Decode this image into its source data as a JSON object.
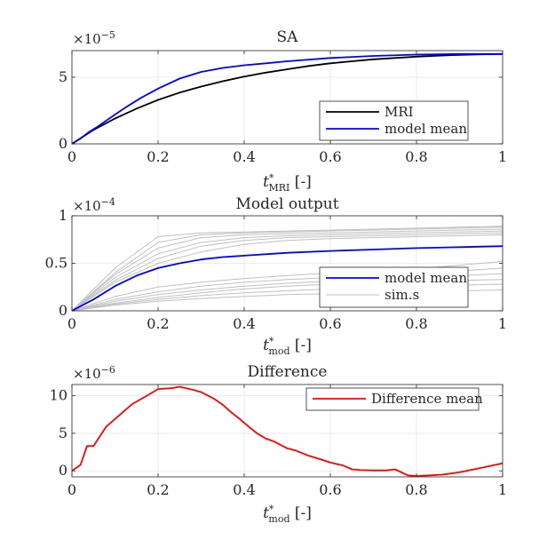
{
  "chart_data": [
    {
      "type": "line",
      "title": "SA",
      "xlabel": "t*MRI [-]",
      "xlabel_parts": {
        "t": "t",
        "star": "*",
        "sub": "MRI",
        "rest": " [-]"
      },
      "ylabel": "",
      "exponent_label": {
        "base": "×10",
        "exp": "−5"
      },
      "xlim": [
        0,
        1
      ],
      "ylim": [
        0,
        7
      ],
      "xticks": [
        0,
        0.2,
        0.4,
        0.6,
        0.8,
        1
      ],
      "xticklabels": [
        "0",
        "0.2",
        "0.4",
        "0.6",
        "0.8",
        "1"
      ],
      "yticks": [
        0,
        5
      ],
      "yticklabels": [
        "0",
        "5"
      ],
      "grid": true,
      "legend": {
        "position": "bottom-right",
        "entries": [
          "MRI",
          "model mean"
        ]
      },
      "series": [
        {
          "name": "MRI",
          "color": "#000000",
          "x": [
            0,
            0.05,
            0.1,
            0.15,
            0.2,
            0.25,
            0.3,
            0.35,
            0.4,
            0.45,
            0.5,
            0.55,
            0.6,
            0.65,
            0.7,
            0.75,
            0.8,
            0.85,
            0.9,
            0.95,
            1.0
          ],
          "y": [
            0,
            1.05,
            1.9,
            2.65,
            3.3,
            3.85,
            4.3,
            4.7,
            5.05,
            5.35,
            5.6,
            5.85,
            6.05,
            6.2,
            6.35,
            6.45,
            6.55,
            6.62,
            6.68,
            6.72,
            6.75
          ]
        },
        {
          "name": "model mean",
          "color": "#0000ff",
          "x": [
            0,
            0.02,
            0.04,
            0.06,
            0.08,
            0.1,
            0.13,
            0.16,
            0.2,
            0.25,
            0.3,
            0.35,
            0.4,
            0.45,
            0.5,
            0.6,
            0.7,
            0.8,
            0.9,
            1.0
          ],
          "y": [
            0,
            0.4,
            0.9,
            1.3,
            1.75,
            2.2,
            2.85,
            3.45,
            4.15,
            4.9,
            5.4,
            5.7,
            5.9,
            6.05,
            6.2,
            6.45,
            6.6,
            6.7,
            6.75,
            6.75
          ]
        }
      ]
    },
    {
      "type": "line",
      "title": "Model output",
      "xlabel": "t*mod [-]",
      "xlabel_parts": {
        "t": "t",
        "star": "*",
        "sub": "mod",
        "rest": " [-]"
      },
      "ylabel": "",
      "exponent_label": {
        "base": "×10",
        "exp": "−4"
      },
      "xlim": [
        0,
        1
      ],
      "ylim": [
        0,
        1
      ],
      "xticks": [
        0,
        0.2,
        0.4,
        0.6,
        0.8,
        1
      ],
      "xticklabels": [
        "0",
        "0.2",
        "0.4",
        "0.6",
        "0.8",
        "1"
      ],
      "yticks": [
        0,
        0.5,
        1
      ],
      "yticklabels": [
        "0",
        "0.5",
        "1"
      ],
      "grid": true,
      "legend": {
        "position": "bottom-right",
        "entries": [
          "model mean",
          "sim.s"
        ]
      },
      "series": [
        {
          "name": "model mean",
          "color": "#0000ff",
          "x": [
            0,
            0.05,
            0.1,
            0.15,
            0.2,
            0.25,
            0.3,
            0.35,
            0.4,
            0.5,
            0.6,
            0.7,
            0.8,
            0.9,
            1.0
          ],
          "y": [
            0,
            0.12,
            0.26,
            0.37,
            0.45,
            0.5,
            0.54,
            0.565,
            0.58,
            0.61,
            0.63,
            0.645,
            0.66,
            0.67,
            0.68
          ]
        },
        {
          "name": "sim.s",
          "color": "#c0c0c0",
          "x": [
            0,
            0.1,
            0.2,
            0.3,
            0.4,
            0.5,
            0.6,
            0.7,
            0.8,
            0.9,
            1.0
          ],
          "y": [
            0,
            0.45,
            0.78,
            0.82,
            0.83,
            0.84,
            0.85,
            0.86,
            0.87,
            0.88,
            0.89
          ]
        },
        {
          "name": "",
          "color": "#c0c0c0",
          "x": [
            0,
            0.1,
            0.2,
            0.3,
            0.4,
            0.5,
            0.6,
            0.7,
            0.8,
            0.9,
            1.0
          ],
          "y": [
            0,
            0.4,
            0.72,
            0.8,
            0.82,
            0.83,
            0.84,
            0.85,
            0.86,
            0.87,
            0.88
          ]
        },
        {
          "name": "",
          "color": "#c0c0c0",
          "x": [
            0,
            0.1,
            0.2,
            0.3,
            0.4,
            0.5,
            0.6,
            0.7,
            0.8,
            0.9,
            1.0
          ],
          "y": [
            0,
            0.38,
            0.66,
            0.77,
            0.8,
            0.81,
            0.82,
            0.83,
            0.84,
            0.85,
            0.86
          ]
        },
        {
          "name": "",
          "color": "#c0c0c0",
          "x": [
            0,
            0.1,
            0.2,
            0.3,
            0.4,
            0.5,
            0.6,
            0.7,
            0.8,
            0.9,
            1.0
          ],
          "y": [
            0,
            0.35,
            0.6,
            0.72,
            0.77,
            0.79,
            0.8,
            0.81,
            0.82,
            0.83,
            0.84
          ]
        },
        {
          "name": "",
          "color": "#c0c0c0",
          "x": [
            0,
            0.1,
            0.2,
            0.3,
            0.4,
            0.5,
            0.6,
            0.7,
            0.8,
            0.9,
            1.0
          ],
          "y": [
            0,
            0.32,
            0.55,
            0.68,
            0.74,
            0.77,
            0.78,
            0.79,
            0.8,
            0.81,
            0.82
          ]
        },
        {
          "name": "",
          "color": "#c0c0c0",
          "x": [
            0,
            0.1,
            0.2,
            0.3,
            0.4,
            0.5,
            0.6,
            0.7,
            0.8,
            0.9,
            1.0
          ],
          "y": [
            0,
            0.3,
            0.5,
            0.62,
            0.7,
            0.74,
            0.76,
            0.77,
            0.78,
            0.79,
            0.8
          ]
        },
        {
          "name": "",
          "color": "#c0c0c0",
          "x": [
            0,
            0.1,
            0.2,
            0.3,
            0.4,
            0.5,
            0.6,
            0.7,
            0.8,
            0.9,
            1.0
          ],
          "y": [
            0,
            0.15,
            0.25,
            0.3,
            0.34,
            0.37,
            0.4,
            0.42,
            0.44,
            0.48,
            0.52
          ]
        },
        {
          "name": "",
          "color": "#c0c0c0",
          "x": [
            0,
            0.1,
            0.2,
            0.3,
            0.4,
            0.5,
            0.6,
            0.7,
            0.8,
            0.9,
            1.0
          ],
          "y": [
            0,
            0.12,
            0.2,
            0.26,
            0.3,
            0.33,
            0.35,
            0.37,
            0.39,
            0.42,
            0.45
          ]
        },
        {
          "name": "",
          "color": "#c0c0c0",
          "x": [
            0,
            0.1,
            0.2,
            0.3,
            0.4,
            0.5,
            0.6,
            0.7,
            0.8,
            0.9,
            1.0
          ],
          "y": [
            0,
            0.1,
            0.17,
            0.22,
            0.26,
            0.29,
            0.31,
            0.33,
            0.35,
            0.37,
            0.39
          ]
        },
        {
          "name": "",
          "color": "#c0c0c0",
          "x": [
            0,
            0.1,
            0.2,
            0.3,
            0.4,
            0.5,
            0.6,
            0.7,
            0.8,
            0.9,
            1.0
          ],
          "y": [
            0,
            0.08,
            0.14,
            0.19,
            0.23,
            0.26,
            0.28,
            0.3,
            0.31,
            0.32,
            0.33
          ]
        },
        {
          "name": "",
          "color": "#c0c0c0",
          "x": [
            0,
            0.1,
            0.2,
            0.3,
            0.4,
            0.5,
            0.6,
            0.7,
            0.8,
            0.9,
            1.0
          ],
          "y": [
            0,
            0.07,
            0.12,
            0.16,
            0.19,
            0.21,
            0.23,
            0.25,
            0.26,
            0.27,
            0.28
          ]
        },
        {
          "name": "",
          "color": "#c0c0c0",
          "x": [
            0,
            0.1,
            0.2,
            0.3,
            0.4,
            0.5,
            0.6,
            0.7,
            0.8,
            0.9,
            1.0
          ],
          "y": [
            0,
            0.06,
            0.1,
            0.13,
            0.15,
            0.17,
            0.18,
            0.19,
            0.2,
            0.21,
            0.22
          ]
        }
      ]
    },
    {
      "type": "line",
      "title": "Difference",
      "xlabel": "t*mod [-]",
      "xlabel_parts": {
        "t": "t",
        "star": "*",
        "sub": "mod",
        "rest": " [-]"
      },
      "ylabel": "",
      "exponent_label": {
        "base": "×10",
        "exp": "−6"
      },
      "xlim": [
        0,
        1
      ],
      "ylim": [
        -0.8,
        11.5
      ],
      "xticks": [
        0,
        0.2,
        0.4,
        0.6,
        0.8,
        1
      ],
      "xticklabels": [
        "0",
        "0.2",
        "0.4",
        "0.6",
        "0.8",
        "1"
      ],
      "yticks": [
        0,
        5,
        10
      ],
      "yticklabels": [
        "0",
        "5",
        "10"
      ],
      "grid": true,
      "legend": {
        "position": "top-right",
        "entries": [
          "Difference mean"
        ]
      },
      "series": [
        {
          "name": "Difference mean",
          "color": "#ff0000",
          "x": [
            0,
            0.02,
            0.035,
            0.05,
            0.08,
            0.12,
            0.14,
            0.18,
            0.2,
            0.23,
            0.25,
            0.28,
            0.3,
            0.33,
            0.35,
            0.37,
            0.39,
            0.41,
            0.43,
            0.45,
            0.47,
            0.5,
            0.52,
            0.55,
            0.58,
            0.6,
            0.63,
            0.65,
            0.67,
            0.7,
            0.73,
            0.75,
            0.78,
            0.8,
            0.83,
            0.86,
            0.9,
            0.95,
            1.0
          ],
          "y": [
            0,
            0.8,
            3.3,
            3.3,
            5.9,
            7.9,
            8.9,
            10.2,
            10.9,
            11.0,
            11.2,
            10.8,
            10.5,
            9.6,
            8.8,
            7.8,
            6.9,
            5.9,
            5.0,
            4.3,
            3.9,
            3.0,
            2.7,
            2.0,
            1.5,
            1.1,
            0.7,
            0.2,
            0.1,
            0.05,
            0.05,
            0.2,
            -0.6,
            -0.7,
            -0.6,
            -0.5,
            -0.2,
            0.4,
            1.0
          ]
        }
      ]
    }
  ]
}
